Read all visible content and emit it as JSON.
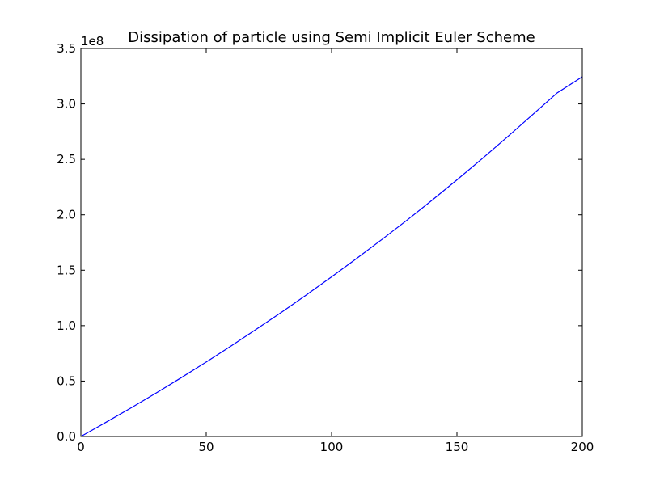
{
  "chart_data": {
    "type": "line",
    "title": "Dissipation of particle using Semi Implicit Euler Scheme",
    "xlabel": "",
    "ylabel": "",
    "y_offset_label": "1e8",
    "xlim": [
      0,
      200
    ],
    "ylim": [
      0,
      3.5
    ],
    "x_ticks": [
      {
        "value": 0,
        "label": "0"
      },
      {
        "value": 50,
        "label": "50"
      },
      {
        "value": 100,
        "label": "100"
      },
      {
        "value": 150,
        "label": "150"
      },
      {
        "value": 200,
        "label": "200"
      }
    ],
    "y_ticks": [
      {
        "value": 0.0,
        "label": "0.0"
      },
      {
        "value": 0.5,
        "label": "0.5"
      },
      {
        "value": 1.0,
        "label": "1.0"
      },
      {
        "value": 1.5,
        "label": "1.5"
      },
      {
        "value": 2.0,
        "label": "2.0"
      },
      {
        "value": 2.5,
        "label": "2.5"
      },
      {
        "value": 3.0,
        "label": "3.0"
      },
      {
        "value": 3.5,
        "label": "3.5"
      }
    ],
    "grid": false,
    "legend": "none",
    "series": [
      {
        "color": "#0000ff",
        "x": [
          0,
          10,
          20,
          30,
          40,
          50,
          60,
          70,
          80,
          90,
          100,
          110,
          120,
          130,
          140,
          150,
          160,
          170,
          180,
          190,
          200
        ],
        "y": [
          0,
          0.128,
          0.258,
          0.392,
          0.53,
          0.672,
          0.818,
          0.968,
          1.12,
          1.278,
          1.44,
          1.606,
          1.776,
          1.95,
          2.13,
          2.315,
          2.505,
          2.7,
          2.9,
          3.1,
          3.245
        ]
      }
    ]
  }
}
